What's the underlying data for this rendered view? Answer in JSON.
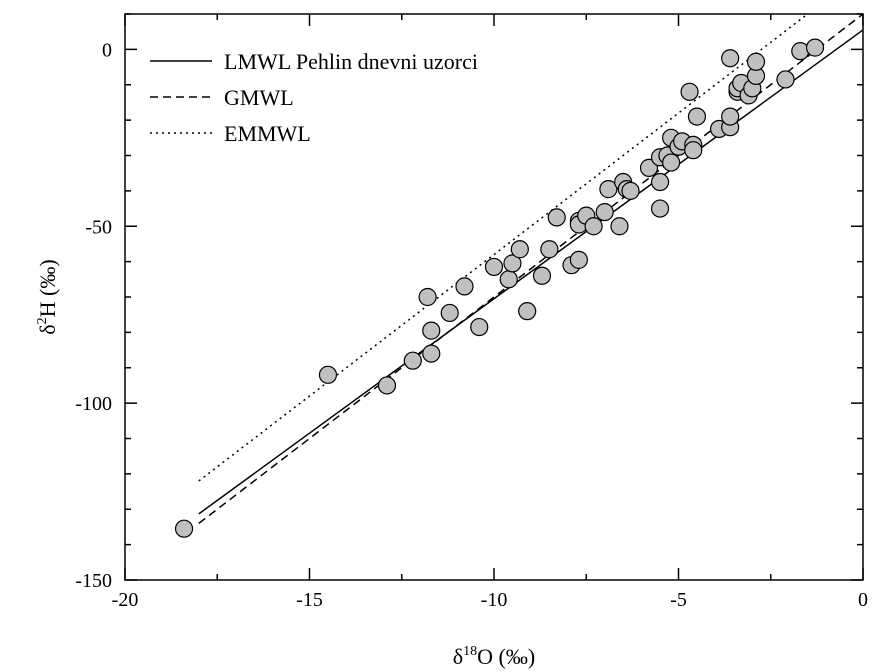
{
  "chart_data": {
    "type": "scatter",
    "title": "",
    "xlabel": {
      "prefix": "δ",
      "sup": "18",
      "suffix": "O (‰)"
    },
    "ylabel": {
      "prefix": "δ",
      "sup": "2",
      "suffix": "H (‰)"
    },
    "xlim": [
      -20,
      0
    ],
    "ylim": [
      -150,
      10
    ],
    "xticks": [
      -20,
      -15,
      -10,
      -5,
      0
    ],
    "yticks": [
      -150,
      -100,
      -50,
      0
    ],
    "xtick_labels": [
      "-20",
      "-15",
      "-10",
      "-5",
      "0"
    ],
    "ytick_labels": [
      "-150",
      "-100",
      "-50",
      "0"
    ],
    "grid": false,
    "legend_position": "top-left",
    "marker_fill": "#c0c0c0",
    "marker_stroke": "#000000",
    "lines": [
      {
        "name": "LMWL Pehlin dnevni uzorci",
        "dash": "solid",
        "slope": 7.6,
        "intercept": 5.5,
        "x_range": [
          -18,
          0
        ]
      },
      {
        "name": "GMWL",
        "dash": "dashed",
        "slope": 8.0,
        "intercept": 10,
        "x_range": [
          -18,
          0
        ]
      },
      {
        "name": "EMMWL",
        "dash": "dotted",
        "slope": 8.0,
        "intercept": 22,
        "x_range": [
          -18,
          0
        ]
      }
    ],
    "points": [
      [
        -18.4,
        -135.5
      ],
      [
        -14.5,
        -92
      ],
      [
        -12.9,
        -95
      ],
      [
        -12.2,
        -88
      ],
      [
        -11.8,
        -70
      ],
      [
        -11.7,
        -79.5
      ],
      [
        -11.7,
        -86
      ],
      [
        -11.2,
        -74.5
      ],
      [
        -10.8,
        -67
      ],
      [
        -10.4,
        -78.5
      ],
      [
        -10.0,
        -61.5
      ],
      [
        -9.6,
        -65
      ],
      [
        -9.5,
        -60.5
      ],
      [
        -9.3,
        -56.5
      ],
      [
        -9.1,
        -74
      ],
      [
        -8.7,
        -64
      ],
      [
        -8.5,
        -56.5
      ],
      [
        -8.3,
        -47.5
      ],
      [
        -7.9,
        -61
      ],
      [
        -7.7,
        -59.5
      ],
      [
        -7.7,
        -48.5
      ],
      [
        -7.7,
        -49.5
      ],
      [
        -7.5,
        -47
      ],
      [
        -7.3,
        -50
      ],
      [
        -7.0,
        -46
      ],
      [
        -6.9,
        -39.5
      ],
      [
        -6.6,
        -50
      ],
      [
        -6.5,
        -37.5
      ],
      [
        -6.4,
        -39.5
      ],
      [
        -6.3,
        -40
      ],
      [
        -5.8,
        -33.5
      ],
      [
        -5.5,
        -45
      ],
      [
        -5.5,
        -37.5
      ],
      [
        -5.5,
        -30.5
      ],
      [
        -5.3,
        -30
      ],
      [
        -5.2,
        -32
      ],
      [
        -5.2,
        -25
      ],
      [
        -5.0,
        -27.5
      ],
      [
        -4.9,
        -26
      ],
      [
        -4.7,
        -12
      ],
      [
        -4.6,
        -27
      ],
      [
        -4.6,
        -28.5
      ],
      [
        -4.5,
        -19
      ],
      [
        -3.9,
        -22.5
      ],
      [
        -3.6,
        -22
      ],
      [
        -3.6,
        -19
      ],
      [
        -3.6,
        -2.5
      ],
      [
        -3.4,
        -12
      ],
      [
        -3.4,
        -11
      ],
      [
        -3.3,
        -9.5
      ],
      [
        -3.1,
        -13
      ],
      [
        -3.0,
        -11
      ],
      [
        -2.9,
        -7.5
      ],
      [
        -2.9,
        -3.5
      ],
      [
        -2.1,
        -8.5
      ],
      [
        -1.7,
        -0.5
      ],
      [
        -1.3,
        0.5
      ]
    ]
  }
}
